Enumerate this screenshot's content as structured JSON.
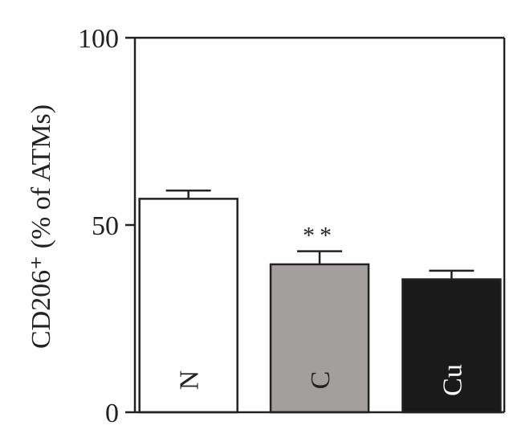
{
  "chart_data": {
    "type": "bar",
    "categories": [
      "N",
      "C",
      "Cu"
    ],
    "values": [
      57,
      39.5,
      35.5
    ],
    "errors": [
      2.2,
      3.5,
      2.3
    ],
    "annotations": [
      "",
      "**",
      ""
    ],
    "bar_colors": [
      "#ffffff",
      "#a39f9f",
      "#1a1a1a"
    ],
    "label_colors": [
      "#222222",
      "#222222",
      "#ffffff"
    ],
    "ylabel": "CD206⁺ (% of ATMs)",
    "ylim": [
      0,
      100
    ],
    "yticks": [
      0,
      50,
      100
    ],
    "grid": false,
    "legend": "none"
  }
}
